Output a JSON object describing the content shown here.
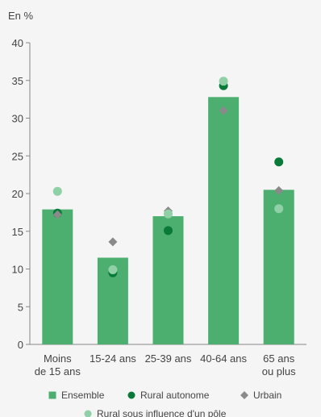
{
  "chart_data": {
    "type": "bar",
    "unit_label": "En %",
    "categories": [
      [
        "Moins",
        "de 15 ans"
      ],
      [
        "15-24 ans"
      ],
      [
        "25-39 ans"
      ],
      [
        "40-64 ans"
      ],
      [
        "65 ans",
        "ou plus"
      ]
    ],
    "ylim": [
      0,
      40
    ],
    "yticks": [
      0,
      5,
      10,
      15,
      20,
      25,
      30,
      35,
      40
    ],
    "grid": false,
    "legend_position": "bottom",
    "bar_series": {
      "name": "Ensemble",
      "color": "#4caf70",
      "values": [
        17.9,
        11.5,
        17.0,
        32.8,
        20.5
      ]
    },
    "point_series": [
      {
        "name": "Rural autonome",
        "marker": "circle",
        "color": "#0a7a3a",
        "values": [
          17.4,
          9.5,
          15.1,
          34.3,
          24.2
        ]
      },
      {
        "name": "Urbain",
        "marker": "diamond",
        "color": "#8a8a8a",
        "values": [
          17.2,
          13.6,
          17.7,
          31.0,
          20.4
        ]
      },
      {
        "name": "Rural sous influence d'un pôle",
        "marker": "circle",
        "color": "#8fd0a6",
        "values": [
          20.3,
          9.9,
          17.3,
          34.9,
          18.0
        ]
      }
    ]
  }
}
